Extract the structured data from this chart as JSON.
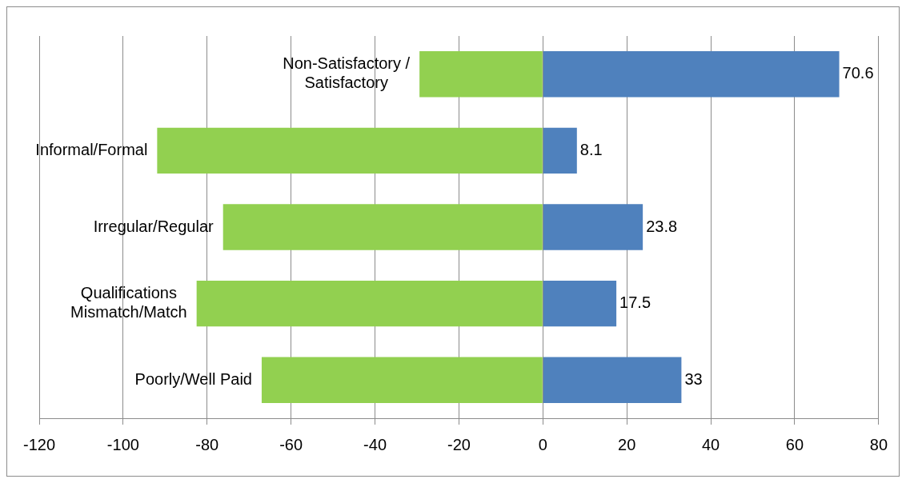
{
  "chart_data": {
    "type": "bar",
    "orientation": "horizontal",
    "stacked": true,
    "categories": [
      "Non-Satisfactory / Satisfactory",
      "Informal/Formal",
      "Irregular/Regular",
      "Qualifications Mismatch/Match",
      "Poorly/Well Paid"
    ],
    "series": [
      {
        "color": "#92d050",
        "values": [
          -29.4,
          -91.9,
          -76.2,
          -82.5,
          -67
        ]
      },
      {
        "color": "#4f81bd",
        "values": [
          70.6,
          8.1,
          23.8,
          17.5,
          33
        ],
        "value_labels": [
          "70.6",
          "8.1",
          "23.8",
          "17.5",
          "33"
        ]
      }
    ],
    "xlim": [
      -120,
      80
    ],
    "xticks": [
      -120,
      -100,
      -80,
      -60,
      -40,
      -20,
      0,
      20,
      40,
      60,
      80
    ],
    "grid": "x",
    "legend": false
  }
}
